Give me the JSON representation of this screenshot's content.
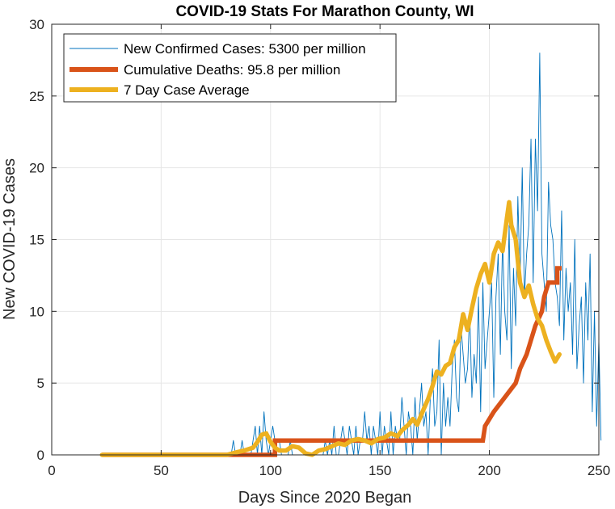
{
  "chart_data": {
    "type": "line",
    "title": "COVID-19 Stats For Marathon County, WI",
    "xlabel": "Days Since 2020 Began",
    "ylabel": "New COVID-19 Cases",
    "xlim": [
      0,
      250
    ],
    "ylim": [
      0,
      30
    ],
    "xticks": [
      0,
      50,
      100,
      150,
      200,
      250
    ],
    "yticks": [
      0,
      5,
      10,
      15,
      20,
      25,
      30
    ],
    "grid": true,
    "legend_position": "top-left",
    "series": [
      {
        "name": "New Confirmed Cases: 5300 per million",
        "color": "#0072BD",
        "style": "thin",
        "x_start": 23,
        "values": [
          0,
          0,
          0,
          0,
          0,
          0,
          0,
          0,
          0,
          0,
          0,
          0,
          0,
          0,
          0,
          0,
          0,
          0,
          0,
          0,
          0,
          0,
          0,
          0,
          0,
          0,
          0,
          0,
          0,
          0,
          0,
          0,
          0,
          0,
          0,
          0,
          0,
          0,
          0,
          0,
          0,
          0,
          0,
          0,
          0,
          0,
          0,
          0,
          0,
          0,
          0,
          0,
          0,
          0,
          0,
          0,
          0,
          0,
          0,
          0,
          1,
          0,
          0,
          0,
          1,
          0,
          0,
          0,
          0,
          1,
          2,
          0,
          2,
          0,
          3,
          1,
          0,
          1,
          2,
          1,
          1,
          1,
          0,
          0,
          0,
          0,
          1,
          0,
          0,
          0,
          0,
          0,
          0,
          0,
          0,
          0,
          0,
          0,
          0,
          0,
          0,
          0,
          1,
          0,
          1,
          0,
          2,
          0,
          0,
          1,
          2,
          1,
          0,
          2,
          1,
          0,
          2,
          0,
          1,
          1,
          3,
          1,
          2,
          0,
          2,
          1,
          0,
          3,
          0,
          2,
          1,
          0,
          3,
          0,
          2,
          1,
          1,
          4,
          2,
          0,
          3,
          2,
          0,
          4,
          1,
          3,
          5,
          2,
          3,
          0,
          4,
          6,
          2,
          3,
          8,
          0,
          5,
          2,
          4,
          2,
          6,
          8,
          4,
          3,
          9,
          7,
          5,
          6,
          10,
          4,
          7,
          5,
          11,
          3,
          12,
          6,
          8,
          10,
          12,
          4,
          11,
          14,
          7,
          15,
          10,
          8,
          16,
          6,
          13,
          9,
          18,
          12,
          20,
          11,
          14,
          16,
          22,
          12,
          22,
          17,
          28,
          14,
          12,
          10,
          19,
          16,
          15,
          12,
          11,
          9,
          17,
          8,
          13,
          10,
          12,
          7,
          15,
          6,
          9,
          11,
          5,
          12,
          8,
          14,
          3,
          10,
          2,
          8,
          1
        ]
      },
      {
        "name": "Cumulative Deaths: 95.8 per million",
        "color": "#D95319",
        "style": "thick",
        "steps": [
          [
            23,
            0
          ],
          [
            102,
            0
          ],
          [
            102,
            1
          ],
          [
            197,
            1
          ],
          [
            198,
            2
          ],
          [
            202,
            3
          ],
          [
            207,
            4
          ],
          [
            212,
            5
          ],
          [
            214,
            6
          ],
          [
            217,
            7
          ],
          [
            219,
            8
          ],
          [
            221,
            9
          ],
          [
            224,
            10
          ],
          [
            225,
            11
          ],
          [
            227,
            12
          ],
          [
            231,
            12
          ],
          [
            231,
            13
          ],
          [
            233,
            13
          ]
        ]
      },
      {
        "name": "7 Day Case Average",
        "color": "#EDB120",
        "style": "thick",
        "points": [
          [
            23,
            0
          ],
          [
            80,
            0
          ],
          [
            85,
            0.2
          ],
          [
            88,
            0.3
          ],
          [
            90,
            0.4
          ],
          [
            92,
            0.5
          ],
          [
            94,
            0.9
          ],
          [
            96,
            1.4
          ],
          [
            98,
            1.5
          ],
          [
            100,
            0.9
          ],
          [
            102,
            0.5
          ],
          [
            104,
            0.3
          ],
          [
            107,
            0.3
          ],
          [
            110,
            0.6
          ],
          [
            113,
            0.5
          ],
          [
            116,
            0.1
          ],
          [
            119,
            0
          ],
          [
            122,
            0.3
          ],
          [
            125,
            0.4
          ],
          [
            128,
            0.6
          ],
          [
            131,
            0.8
          ],
          [
            134,
            0.7
          ],
          [
            137,
            1.0
          ],
          [
            140,
            1.1
          ],
          [
            143,
            1.0
          ],
          [
            146,
            0.8
          ],
          [
            149,
            1.1
          ],
          [
            152,
            1.2
          ],
          [
            155,
            1.5
          ],
          [
            158,
            1.3
          ],
          [
            160,
            1.7
          ],
          [
            163,
            2.1
          ],
          [
            165,
            2.5
          ],
          [
            167,
            2.1
          ],
          [
            170,
            3.2
          ],
          [
            172,
            3.9
          ],
          [
            174,
            4.8
          ],
          [
            176,
            5.8
          ],
          [
            178,
            5.6
          ],
          [
            180,
            6.2
          ],
          [
            182,
            6.4
          ],
          [
            184,
            7.5
          ],
          [
            186,
            8.0
          ],
          [
            188,
            9.8
          ],
          [
            190,
            8.7
          ],
          [
            192,
            10.2
          ],
          [
            194,
            11.6
          ],
          [
            196,
            12.6
          ],
          [
            198,
            13.3
          ],
          [
            200,
            12.0
          ],
          [
            202,
            14.0
          ],
          [
            204,
            14.8
          ],
          [
            206,
            14.2
          ],
          [
            208,
            16.5
          ],
          [
            209,
            17.6
          ],
          [
            210,
            16.0
          ],
          [
            212,
            15.0
          ],
          [
            214,
            12.0
          ],
          [
            216,
            11.0
          ],
          [
            218,
            11.8
          ],
          [
            220,
            10.5
          ],
          [
            222,
            9.5
          ],
          [
            224,
            9.0
          ],
          [
            226,
            8.0
          ],
          [
            228,
            7.2
          ],
          [
            230,
            6.5
          ],
          [
            232,
            7.0
          ]
        ]
      }
    ]
  }
}
